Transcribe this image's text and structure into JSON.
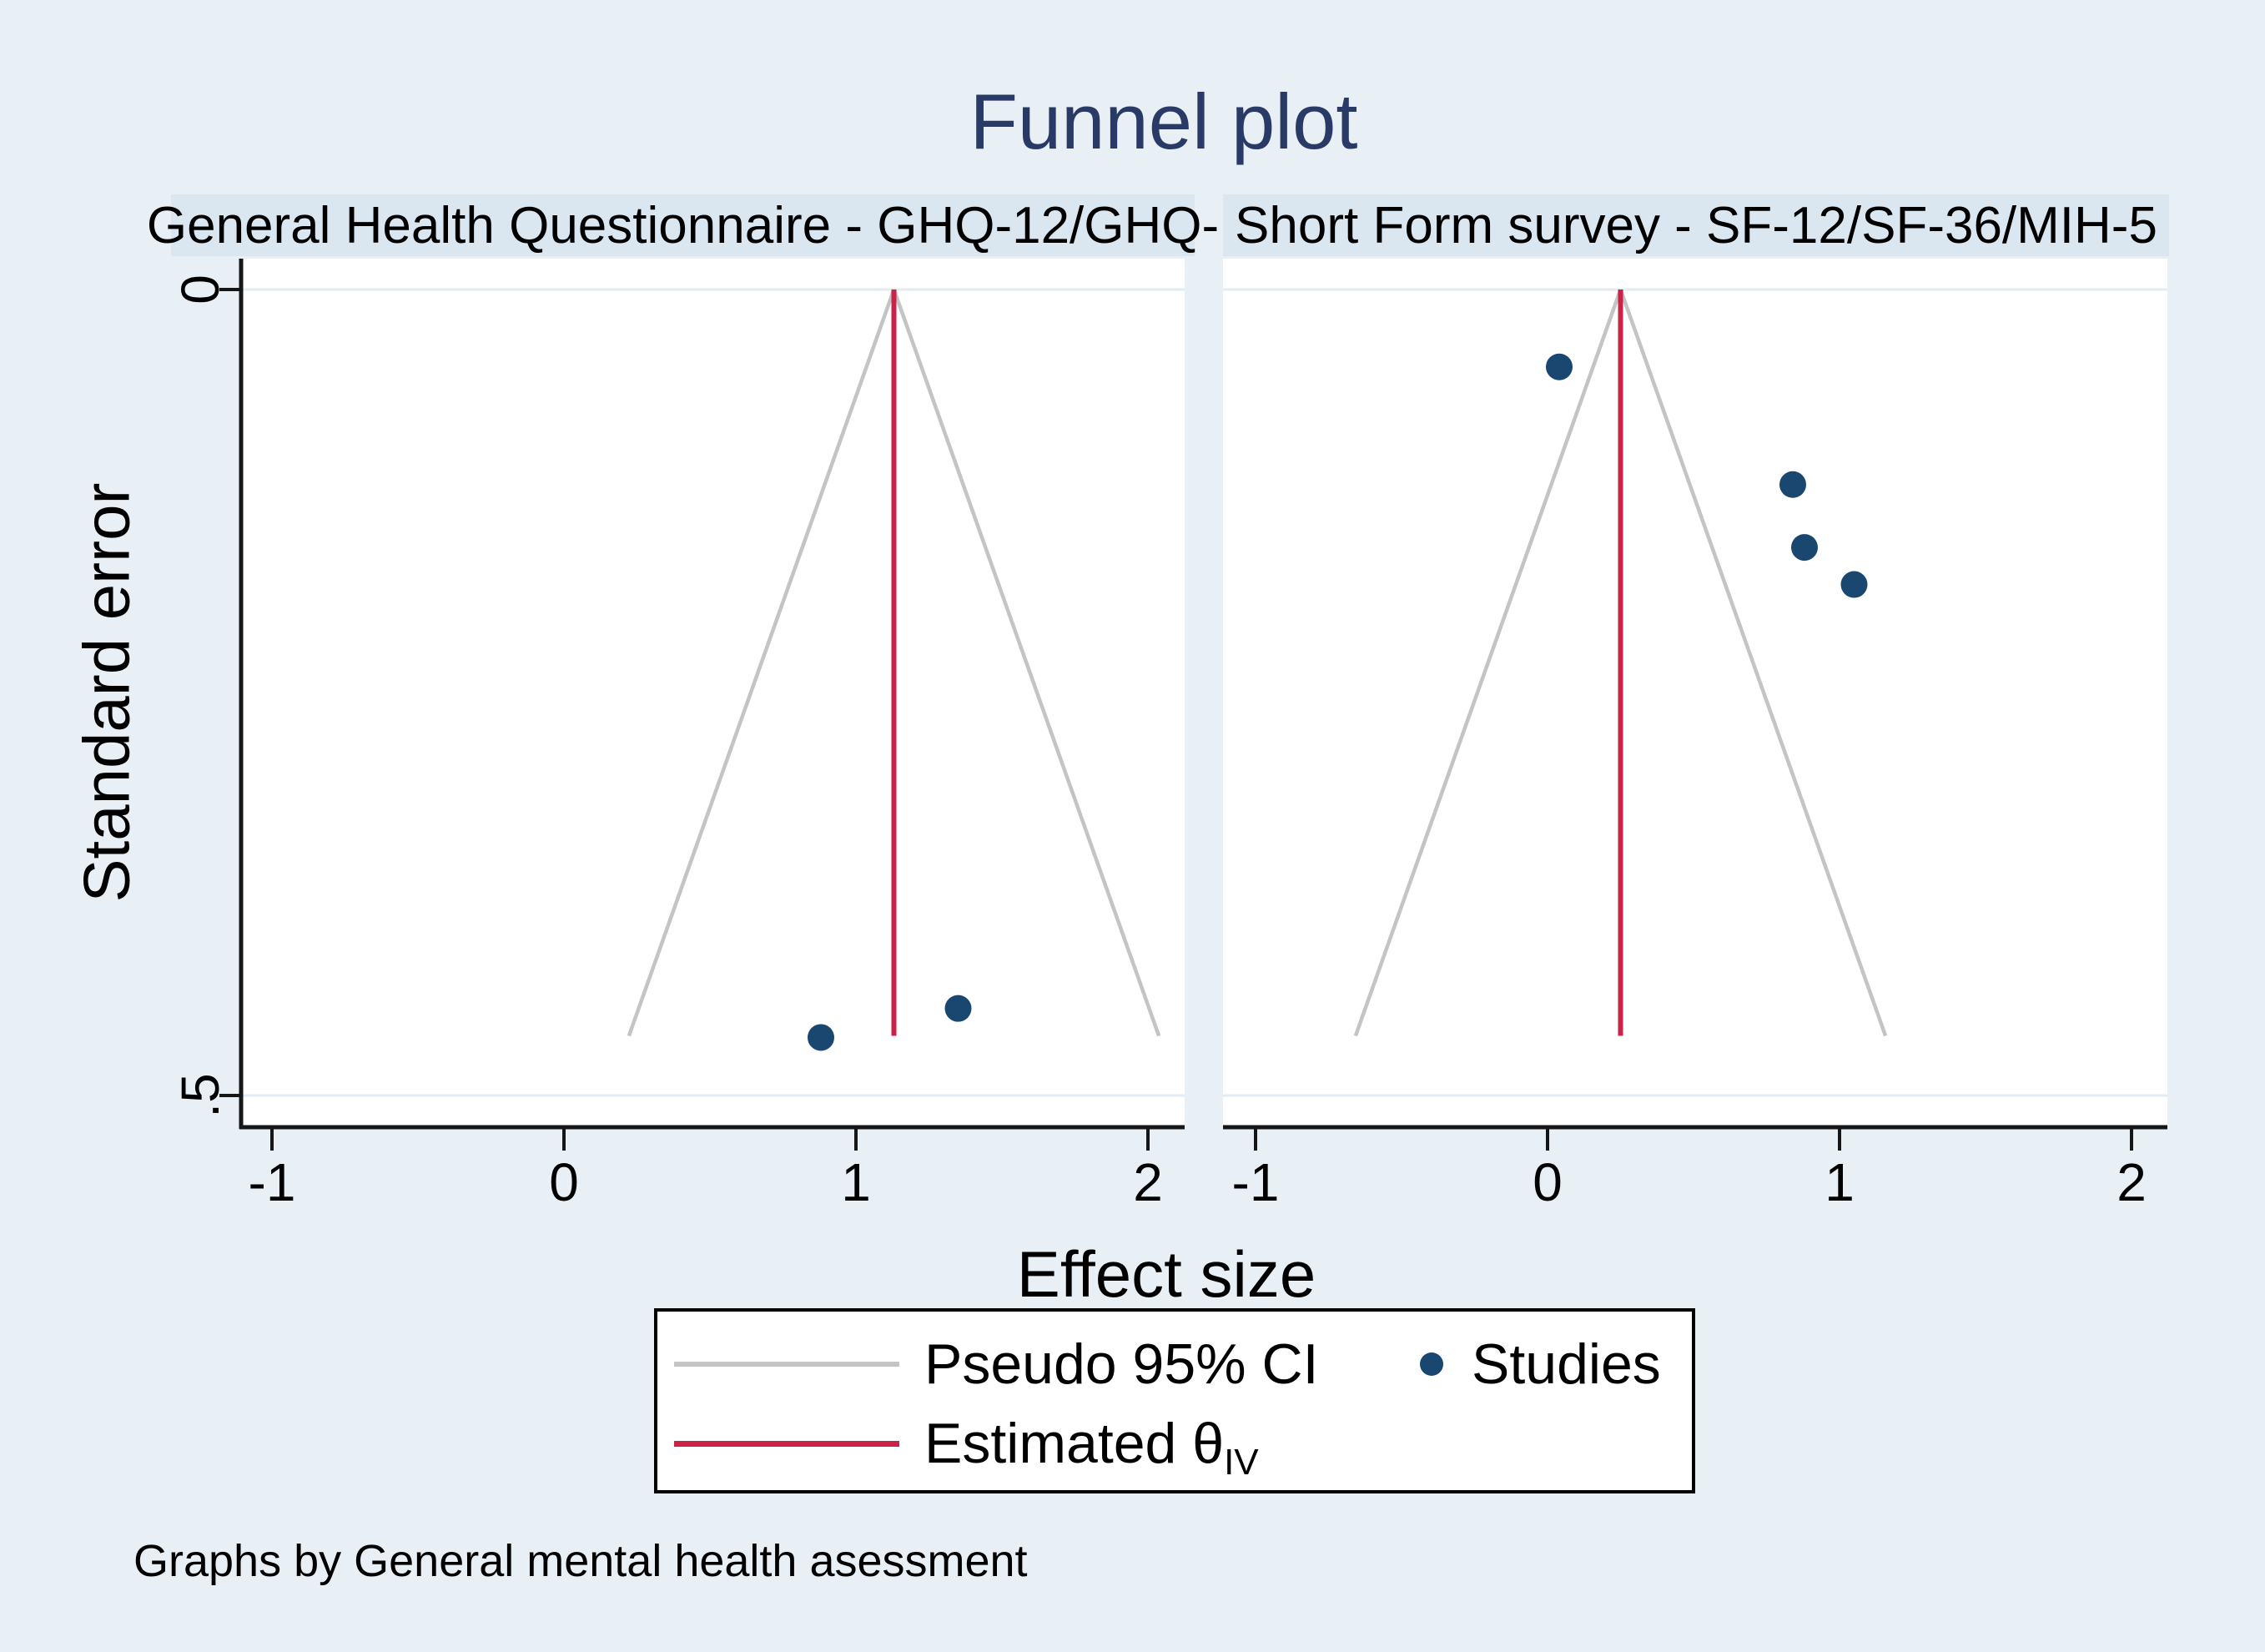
{
  "title": "Funnel plot",
  "caption": "Graphs by General mental health asessment",
  "axes": {
    "y_label": "Standard error",
    "x_label": "Effect size",
    "y_ticks": [
      {
        "value": 0,
        "label": "0"
      },
      {
        "value": 0.5,
        "label": ".5"
      }
    ],
    "x_ticks": [
      {
        "value": -1,
        "label": "-1"
      },
      {
        "value": 0,
        "label": "0"
      },
      {
        "value": 1,
        "label": "1"
      },
      {
        "value": 2,
        "label": "2"
      }
    ]
  },
  "legend": {
    "pseudo_ci_label": "Pseudo 95% CI",
    "studies_label": "Studies",
    "estimated_label": "Estimated θ",
    "estimated_sub": "IV"
  },
  "colors": {
    "background": "#e9f0f5",
    "header_band": "#dbe7f0",
    "plot_background": "#ffffff",
    "gridline": "#e2ecf3",
    "axis": "#161616",
    "pseudo_ci": "#c4c4c6",
    "estimate_line": "#cb2347",
    "studies": "#1a476f",
    "title_color": "#2a3a66"
  },
  "chart_data": [
    {
      "type": "scatter",
      "subtitle": "General Health Questionnaire - GHQ-12/GHQ-",
      "points": [
        {
          "effect_size": 0.88,
          "standard_error": 0.464
        },
        {
          "effect_size": 1.35,
          "standard_error": 0.446
        }
      ],
      "estimated_theta": 1.13,
      "funnel_max_se": 0.463,
      "ci_multiplier": 1.96,
      "xlim": [
        -1.1,
        2.13
      ],
      "ylim": [
        0,
        0.52
      ],
      "grid": true,
      "legend_position": "bottom-center"
    },
    {
      "type": "scatter",
      "subtitle": "Short Form survey - SF-12/SF-36/MIH-5",
      "points": [
        {
          "effect_size": 0.04,
          "standard_error": 0.048
        },
        {
          "effect_size": 0.84,
          "standard_error": 0.121
        },
        {
          "effect_size": 0.88,
          "standard_error": 0.16
        },
        {
          "effect_size": 1.05,
          "standard_error": 0.183
        }
      ],
      "estimated_theta": 0.25,
      "funnel_max_se": 0.463,
      "ci_multiplier": 1.96,
      "xlim": [
        -1.1,
        2.12
      ],
      "ylim": [
        0,
        0.52
      ],
      "grid": true,
      "legend_position": "bottom-center"
    }
  ]
}
